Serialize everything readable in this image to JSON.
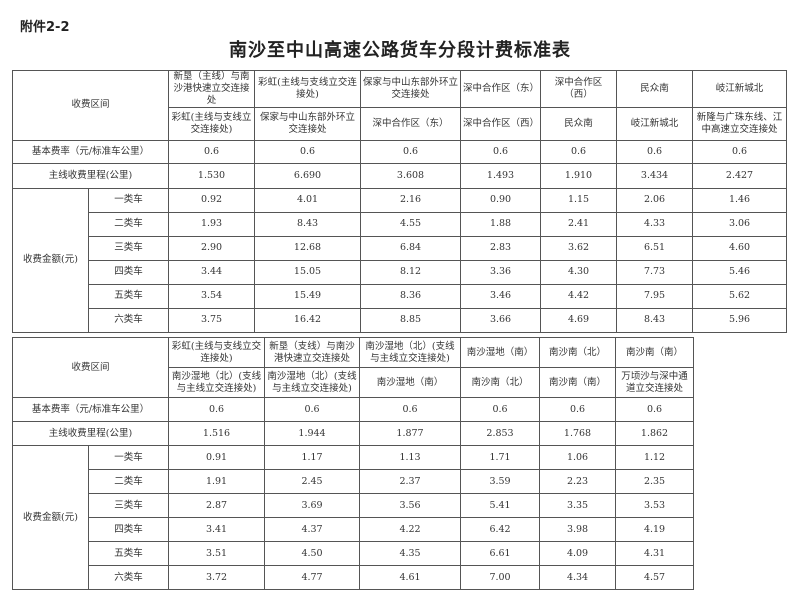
{
  "attachment_label": "附件2-2",
  "title": "南沙至中山高速公路货车分段计费标准表",
  "labels": {
    "section": "收费区间",
    "rate": "基本费率（元/标准车公里）",
    "mileage": "主线收费里程(公里)",
    "amount": "收费金额(元)",
    "classes": [
      "一类车",
      "二类车",
      "三类车",
      "四类车",
      "五类车",
      "六类车"
    ]
  },
  "tables": [
    {
      "from": [
        "新垦（主线）与南沙港快速立交连接处",
        "彩虹(主线与支线立交连接处)",
        "保家与中山东部外环立交连接处",
        "深中合作区（东）",
        "深中合作区（西）",
        "民众南",
        "岐江新城北"
      ],
      "to": [
        "彩虹(主线与支线立交连接处)",
        "保家与中山东部外环立交连接处",
        "深中合作区（东）",
        "深中合作区（西）",
        "民众南",
        "岐江新城北",
        "新隆与广珠东线、江中高速立交连接处"
      ],
      "rate": [
        "0.6",
        "0.6",
        "0.6",
        "0.6",
        "0.6",
        "0.6",
        "0.6"
      ],
      "mileage": [
        "1.530",
        "6.690",
        "3.608",
        "1.493",
        "1.910",
        "3.434",
        "2.427"
      ],
      "amounts": [
        [
          "0.92",
          "4.01",
          "2.16",
          "0.90",
          "1.15",
          "2.06",
          "1.46"
        ],
        [
          "1.93",
          "8.43",
          "4.55",
          "1.88",
          "2.41",
          "4.33",
          "3.06"
        ],
        [
          "2.90",
          "12.68",
          "6.84",
          "2.83",
          "3.62",
          "6.51",
          "4.60"
        ],
        [
          "3.44",
          "15.05",
          "8.12",
          "3.36",
          "4.30",
          "7.73",
          "5.46"
        ],
        [
          "3.54",
          "15.49",
          "8.36",
          "3.46",
          "4.42",
          "7.95",
          "5.62"
        ],
        [
          "3.75",
          "16.42",
          "8.85",
          "3.66",
          "4.69",
          "8.43",
          "5.96"
        ]
      ]
    },
    {
      "from": [
        "彩虹(主线与支线立交连接处)",
        "新垦（支线）与南沙港快速立交连接处",
        "南沙湿地（北）(支线与主线立交连接处)",
        "南沙湿地（南）",
        "南沙南（北）",
        "南沙南（南）"
      ],
      "to": [
        "南沙湿地（北）(支线与主线立交连接处)",
        "南沙湿地（北）(支线与主线立交连接处)",
        "南沙湿地（南）",
        "南沙南（北）",
        "南沙南（南）",
        "万顷沙与深中通道立交连接处"
      ],
      "rate": [
        "0.6",
        "0.6",
        "0.6",
        "0.6",
        "0.6",
        "0.6"
      ],
      "mileage": [
        "1.516",
        "1.944",
        "1.877",
        "2.853",
        "1.768",
        "1.862"
      ],
      "amounts": [
        [
          "0.91",
          "1.17",
          "1.13",
          "1.71",
          "1.06",
          "1.12"
        ],
        [
          "1.91",
          "2.45",
          "2.37",
          "3.59",
          "2.23",
          "2.35"
        ],
        [
          "2.87",
          "3.69",
          "3.56",
          "5.41",
          "3.35",
          "3.53"
        ],
        [
          "3.41",
          "4.37",
          "4.22",
          "6.42",
          "3.98",
          "4.19"
        ],
        [
          "3.51",
          "4.50",
          "4.35",
          "6.61",
          "4.09",
          "4.31"
        ],
        [
          "3.72",
          "4.77",
          "4.61",
          "7.00",
          "4.34",
          "4.57"
        ]
      ]
    }
  ]
}
